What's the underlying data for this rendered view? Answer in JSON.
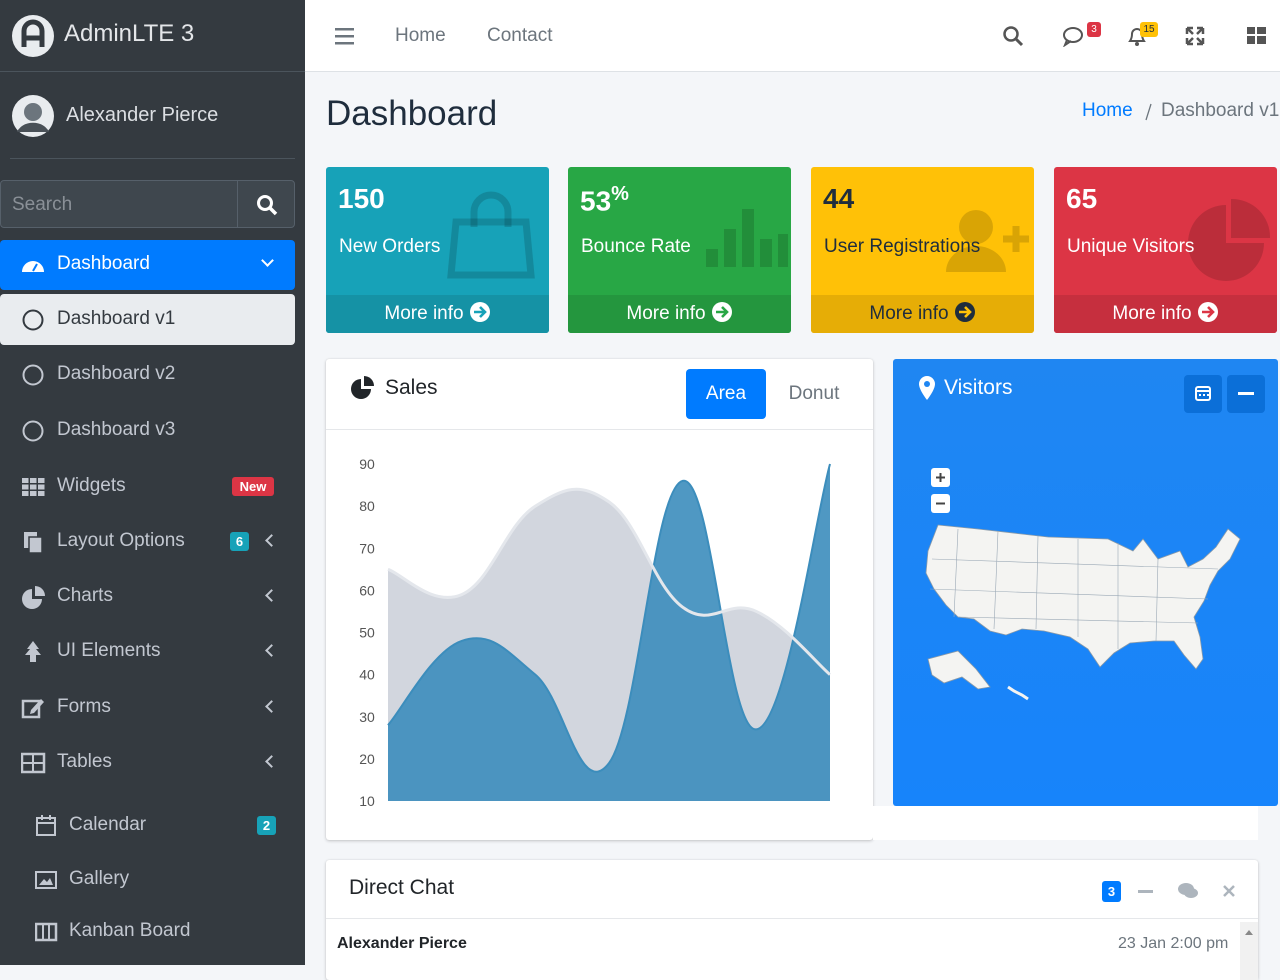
{
  "brand": "AdminLTE 3",
  "user": "Alexander Pierce",
  "sidebar": {
    "search_placeholder": "Search",
    "items": [
      {
        "label": "Dashboard"
      },
      {
        "label": "Dashboard v1"
      },
      {
        "label": "Dashboard v2"
      },
      {
        "label": "Dashboard v3"
      },
      {
        "label": "Widgets",
        "badge": "New"
      },
      {
        "label": "Layout Options",
        "badge": 6
      },
      {
        "label": "Charts"
      },
      {
        "label": "UI Elements"
      },
      {
        "label": "Forms"
      },
      {
        "label": "Tables"
      },
      {
        "label": "Calendar",
        "badge": 2
      },
      {
        "label": "Gallery"
      },
      {
        "label": "Kanban Board"
      }
    ]
  },
  "navbar": {
    "links": [
      "Home",
      "Contact"
    ],
    "messages_badge": 3,
    "notifications_badge": 15
  },
  "page_title": "Dashboard",
  "breadcrumb": [
    "Home",
    "Dashboard v1"
  ],
  "info_boxes": [
    {
      "value": 150,
      "label": "New Orders",
      "link": "More info"
    },
    {
      "value": 53,
      "unit": "%",
      "label": "Bounce Rate",
      "link": "More info"
    },
    {
      "value": 44,
      "label": "User Registrations",
      "link": "More info"
    },
    {
      "value": 65,
      "label": "Unique Visitors",
      "link": "More info"
    }
  ],
  "sales": {
    "title": "Sales",
    "tabs": [
      "Area",
      "Donut"
    ],
    "chart": {
      "type": "area",
      "ylim": [
        10,
        90
      ],
      "yticks": [
        10,
        20,
        30,
        40,
        50,
        60,
        70,
        80,
        90
      ],
      "series": [
        {
          "color": "#d2d6de",
          "values": [
            65,
            59,
            80,
            81,
            56,
            55,
            40
          ]
        },
        {
          "color": "#3c8dbc",
          "values": [
            28,
            48,
            40,
            19,
            86,
            27,
            90
          ]
        }
      ]
    }
  },
  "visitors": {
    "title": "Visitors"
  },
  "direct_chat": {
    "title": "Direct Chat",
    "badge": 3,
    "messages": [
      {
        "name": "Alexander Pierce",
        "time": "23 Jan 2:00 pm"
      }
    ]
  }
}
